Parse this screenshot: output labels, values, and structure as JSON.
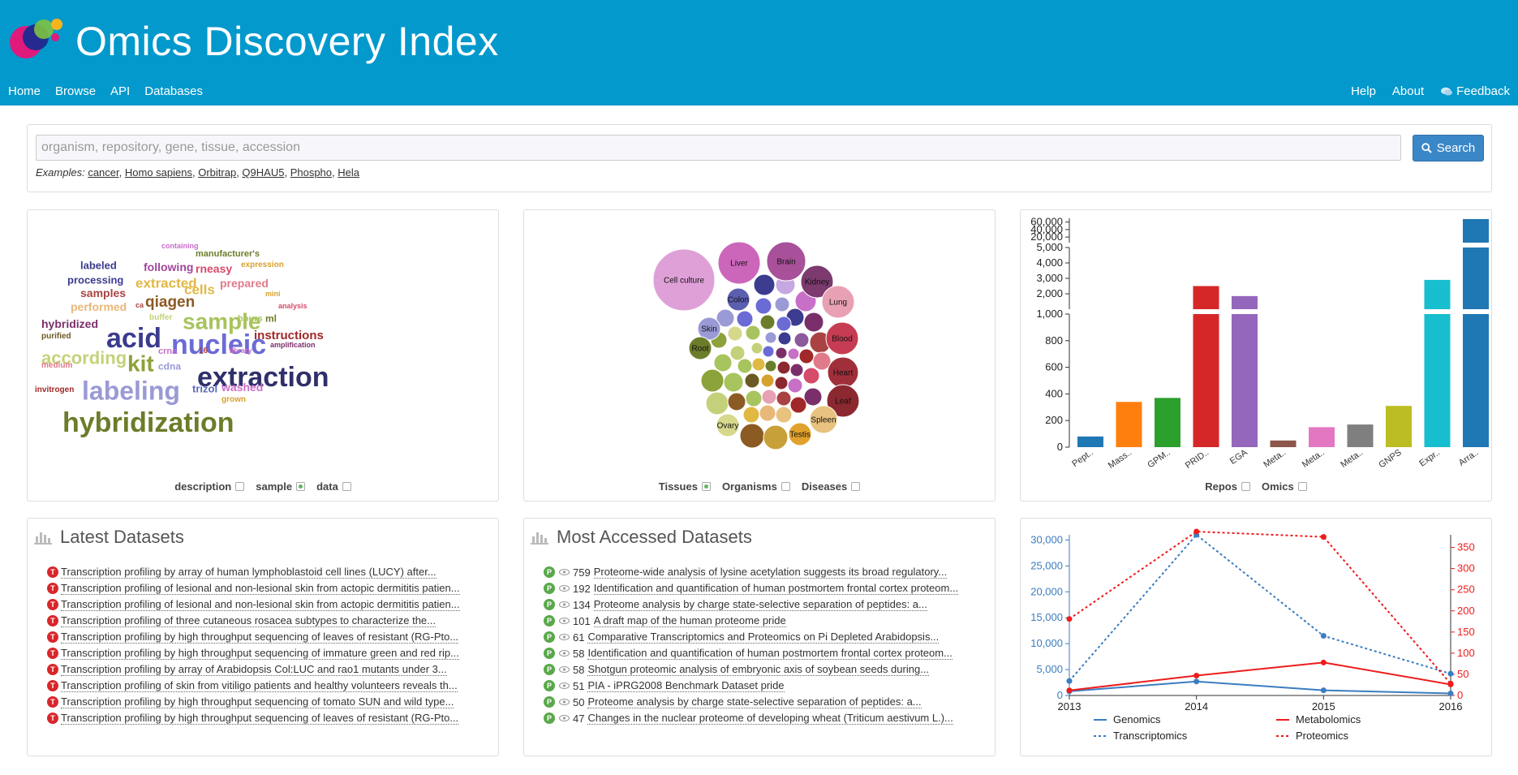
{
  "header": {
    "title": "Omics Discovery Index",
    "nav_left": [
      "Home",
      "Browse",
      "API",
      "Databases"
    ],
    "nav_right": [
      "Help",
      "About",
      "Feedback"
    ]
  },
  "search": {
    "placeholder": "organism, repository, gene, tissue, accession",
    "button_label": "Search",
    "examples_label": "Examples:",
    "examples": [
      "cancer",
      "Homo sapiens",
      "Orbitrap",
      "Q9HAU5",
      "Phospho",
      "Hela"
    ]
  },
  "word_cloud": {
    "words": [
      {
        "text": "containing",
        "color": "#c86fc8"
      },
      {
        "text": "labeled",
        "color": "#3b3b8f"
      },
      {
        "text": "following",
        "color": "#a0469a"
      },
      {
        "text": "manufacturer's",
        "color": "#6b7d2a"
      },
      {
        "text": "rneasy",
        "color": "#d64b6a"
      },
      {
        "text": "expression",
        "color": "#d6a12f"
      },
      {
        "text": "processing",
        "color": "#3b3b8f"
      },
      {
        "text": "extracted",
        "color": "#e0b842"
      },
      {
        "text": "cells",
        "color": "#e0b842"
      },
      {
        "text": "prepared",
        "color": "#e07a8a"
      },
      {
        "text": "samples",
        "color": "#a94343"
      },
      {
        "text": "qiagen",
        "color": "#8c5a23"
      },
      {
        "text": "mini",
        "color": "#d6a12f"
      },
      {
        "text": "performed",
        "color": "#e8b87a"
      },
      {
        "text": "ca",
        "color": "#a94343"
      },
      {
        "text": "sample",
        "color": "#a7c45e"
      },
      {
        "text": "analysis",
        "color": "#d64b6a"
      },
      {
        "text": "buffer",
        "color": "#c5d17a"
      },
      {
        "text": "hours",
        "color": "#a7c45e"
      },
      {
        "text": "ml",
        "color": "#6b7d2a"
      },
      {
        "text": "hybridized",
        "color": "#7b2f6a"
      },
      {
        "text": "acid",
        "color": "#3b3b8f"
      },
      {
        "text": "nucleic",
        "color": "#6b6bd6"
      },
      {
        "text": "instructions",
        "color": "#a02828"
      },
      {
        "text": "purified",
        "color": "#6b5a23"
      },
      {
        "text": "amplification",
        "color": "#7b2f6a"
      },
      {
        "text": "according",
        "color": "#c5d17a"
      },
      {
        "text": "kit",
        "color": "#8ca23a"
      },
      {
        "text": "crna",
        "color": "#c86fc8"
      },
      {
        "text": "16",
        "color": "#a94343"
      },
      {
        "text": "library",
        "color": "#c86fc8"
      },
      {
        "text": "medium",
        "color": "#e07a8a"
      },
      {
        "text": "cdna",
        "color": "#9a9ad6"
      },
      {
        "text": "extraction",
        "color": "#2f2f6b"
      },
      {
        "text": "labeling",
        "color": "#9a9ad6"
      },
      {
        "text": "trizol",
        "color": "#5a6ab8"
      },
      {
        "text": "washed",
        "color": "#c86fc8"
      },
      {
        "text": "invitrogen",
        "color": "#a02828"
      },
      {
        "text": "grown",
        "color": "#d6a12f"
      },
      {
        "text": "hybridization",
        "color": "#6b7d2a"
      }
    ],
    "toggles": [
      {
        "label": "description",
        "checked": false
      },
      {
        "label": "sample",
        "checked": true
      },
      {
        "label": "data",
        "checked": false
      }
    ]
  },
  "bubbles": {
    "labels": [
      "Cell culture",
      "Liver",
      "Brain",
      "Kidney",
      "Lung",
      "Colon",
      "Blood",
      "Skin",
      "Root",
      "Heart",
      "Leaf",
      "Spleen",
      "Ovary",
      "Testis"
    ],
    "toggles": [
      {
        "label": "Tissues",
        "checked": true
      },
      {
        "label": "Organisms",
        "checked": false
      },
      {
        "label": "Diseases",
        "checked": false
      }
    ]
  },
  "latest": {
    "title": "Latest Datasets",
    "items": [
      "Transcription profiling by array of human lymphoblastoid cell lines (LUCY) after...",
      "Transcription profiling of lesional and non-lesional skin from actopic dermititis patien...",
      "Transcription profiling of lesional and non-lesional skin from actopic dermititis patien...",
      "Transcription profiling of three cutaneous rosacea subtypes to characterize the...",
      "Transcription profiling by high throughput sequencing of leaves of resistant (RG-Pto...",
      "Transcription profiling by high throughput sequencing of immature green and red rip...",
      "Transcription profiling by array of Arabidopsis Col:LUC and rao1 mutants under 3...",
      "Transcription profiling of skin from vitiligo patients and healthy volunteers reveals th...",
      "Transcription profiling by high throughput sequencing of tomato SUN and wild type...",
      "Transcription profiling by high throughput sequencing of leaves of resistant (RG-Pto..."
    ]
  },
  "accessed": {
    "title": "Most Accessed Datasets",
    "items": [
      {
        "count": "759",
        "text": "Proteome-wide analysis of lysine acetylation suggests its broad regulatory..."
      },
      {
        "count": "192",
        "text": "Identification and quantification of human postmortem frontal cortex proteom..."
      },
      {
        "count": "134",
        "text": "Proteome analysis by charge state-selective separation of peptides: a..."
      },
      {
        "count": "101",
        "text": "A draft map of the human proteome pride"
      },
      {
        "count": "61",
        "text": "Comparative Transcriptomics and Proteomics on Pi Depleted Arabidopsis..."
      },
      {
        "count": "58",
        "text": "Identification and quantification of human postmortem frontal cortex proteom..."
      },
      {
        "count": "58",
        "text": "Shotgun proteomic analysis of embryonic axis of soybean seeds during..."
      },
      {
        "count": "51",
        "text": "PIA - iPRG2008 Benchmark Dataset pride"
      },
      {
        "count": "50",
        "text": "Proteome analysis by charge state-selective separation of peptides: a..."
      },
      {
        "count": "47",
        "text": "Changes in the nuclear proteome of developing wheat (Triticum aestivum L.)..."
      }
    ]
  },
  "chart_data": [
    {
      "type": "bar",
      "categories": [
        "Pept..",
        "Mass..",
        "GPM..",
        "PRID..",
        "EGA",
        "Meta..",
        "Meta..",
        "Meta..",
        "GNPS",
        "Expr..",
        "Arra.."
      ],
      "values": [
        80,
        340,
        370,
        2500,
        1850,
        50,
        150,
        170,
        310,
        2900,
        68000
      ],
      "colors": [
        "#1f77b4",
        "#ff7f0e",
        "#2ca02c",
        "#d62728",
        "#9467bd",
        "#8c564b",
        "#e377c2",
        "#7f7f7f",
        "#bcbd22",
        "#17becf",
        "#1f77b4"
      ],
      "ytick_labels": [
        "0",
        "200",
        "400",
        "600",
        "800",
        "1,000",
        "2,000",
        "3,000",
        "4,000",
        "5,000",
        "20,000",
        "40,000",
        "60,000"
      ],
      "segments": [
        [
          0,
          1000
        ],
        [
          1000,
          5000
        ],
        [
          5000,
          70000
        ]
      ],
      "toggles": [
        {
          "label": "Repos",
          "checked": false
        },
        {
          "label": "Omics",
          "checked": false
        }
      ]
    },
    {
      "type": "line",
      "x": [
        2013,
        2014,
        2015,
        2016
      ],
      "xtick_labels": [
        "2013",
        "2014",
        "2015",
        "2016"
      ],
      "ylim_left": [
        0,
        31000
      ],
      "ylim_right": [
        0,
        380
      ],
      "ytick_left": [
        "0",
        "5,000",
        "10,000",
        "15,000",
        "20,000",
        "25,000",
        "30,000"
      ],
      "ytick_right": [
        "0",
        "50",
        "100",
        "150",
        "200",
        "250",
        "300",
        "350"
      ],
      "series": [
        {
          "name": "Genomics",
          "axis": "left",
          "style": "solid",
          "color": "#3b7dc0",
          "values": [
            800,
            2700,
            1000,
            400
          ]
        },
        {
          "name": "Transcriptomics",
          "axis": "left",
          "style": "dotted",
          "color": "#3b7dc0",
          "values": [
            2800,
            31000,
            11500,
            4200
          ]
        },
        {
          "name": "Metabolomics",
          "axis": "right",
          "style": "solid",
          "color": "#ee1c1c",
          "values": [
            12,
            47,
            78,
            26
          ]
        },
        {
          "name": "Proteomics",
          "axis": "right",
          "style": "dotted",
          "color": "#ee1c1c",
          "values": [
            181,
            390,
            375,
            28
          ]
        }
      ]
    }
  ]
}
